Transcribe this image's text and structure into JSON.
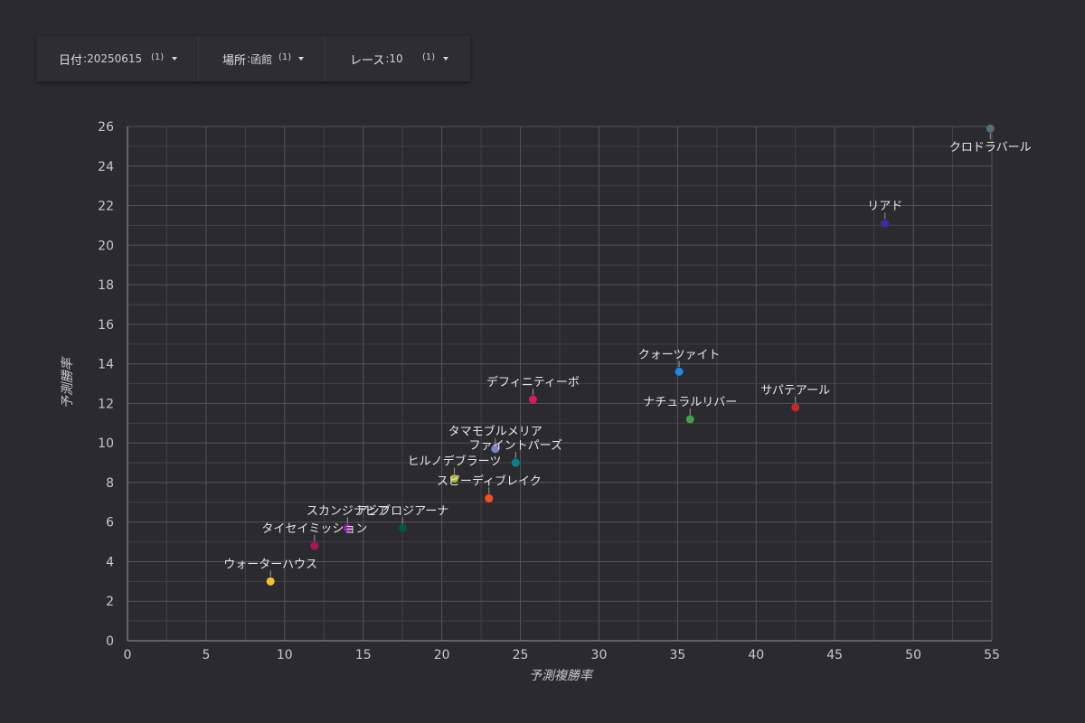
{
  "filters": [
    {
      "label": "日付",
      "value": "20250615",
      "count": "(1)",
      "icon": "caret-down-icon"
    },
    {
      "label": "場所",
      "value": "函館",
      "count": "(1)",
      "icon": "caret-down-icon"
    },
    {
      "label": "レース",
      "value": "10",
      "count": "(1)",
      "icon": "caret-down-icon"
    }
  ],
  "chart_data": {
    "type": "scatter",
    "xlabel": "予測複勝率",
    "ylabel": "予測勝率",
    "xlim": [
      0,
      55
    ],
    "ylim": [
      0,
      26
    ],
    "x_ticks": [
      0,
      5,
      10,
      15,
      20,
      25,
      30,
      35,
      40,
      45,
      50,
      55
    ],
    "y_ticks": [
      0,
      2,
      4,
      6,
      8,
      10,
      12,
      14,
      16,
      18,
      20,
      22,
      24,
      26
    ],
    "grid": true,
    "points": [
      {
        "name": "クロドラバール",
        "x": 54.9,
        "y": 25.9,
        "color": "#546e7a",
        "label_pos": "below"
      },
      {
        "name": "リアド",
        "x": 48.2,
        "y": 21.1,
        "color": "#4527a0",
        "label_pos": "above"
      },
      {
        "name": "クォーツァイト",
        "x": 35.1,
        "y": 13.6,
        "color": "#1e88e5",
        "label_pos": "above"
      },
      {
        "name": "サパテアール",
        "x": 42.5,
        "y": 11.8,
        "color": "#c62828",
        "label_pos": "above"
      },
      {
        "name": "ナチュラルリバー",
        "x": 35.8,
        "y": 11.2,
        "color": "#43a047",
        "label_pos": "above"
      },
      {
        "name": "デフィニティーボ",
        "x": 25.8,
        "y": 12.2,
        "color": "#d81b60",
        "label_pos": "above"
      },
      {
        "name": "タマモブルメリア",
        "x": 23.4,
        "y": 9.7,
        "color": "#7986cb",
        "label_pos": "above"
      },
      {
        "name": "ファイントパーズ",
        "x": 24.7,
        "y": 9.0,
        "color": "#00838f",
        "label_pos": "above"
      },
      {
        "name": "ヒルノデブラーツ",
        "x": 20.8,
        "y": 8.2,
        "color": "#afb42b",
        "label_pos": "above"
      },
      {
        "name": "スピーディブレイク",
        "x": 23.0,
        "y": 7.2,
        "color": "#f4511e",
        "label_pos": "above"
      },
      {
        "name": "スカンジナビア",
        "x": 14.0,
        "y": 5.7,
        "color": "#8e24aa",
        "label_pos": "above"
      },
      {
        "name": "アンブロジアーナ",
        "x": 17.5,
        "y": 5.7,
        "color": "#00584a",
        "label_pos": "above"
      },
      {
        "name": "タイセイミッション",
        "x": 11.9,
        "y": 4.8,
        "color": "#ad1457",
        "label_pos": "above"
      },
      {
        "name": "ウォーターハウス",
        "x": 9.1,
        "y": 3.0,
        "color": "#fbc02d",
        "label_pos": "above"
      }
    ]
  }
}
